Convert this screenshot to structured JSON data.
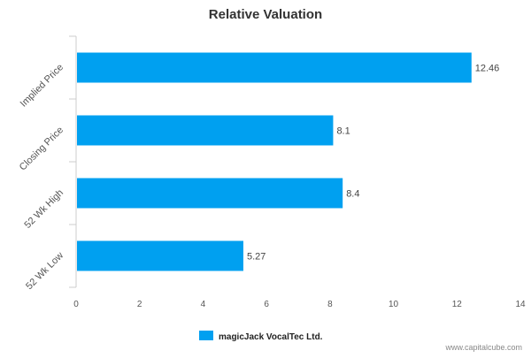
{
  "chart_data": {
    "type": "bar",
    "orientation": "horizontal",
    "title": "Relative Valuation",
    "categories": [
      "Implied Price",
      "Closing Price",
      "52 Wk High",
      "52 Wk Low"
    ],
    "series": [
      {
        "name": "magicJack VocalTec Ltd.",
        "values": [
          12.46,
          8.1,
          8.4,
          5.27
        ],
        "color": "#00a0f0"
      }
    ],
    "data_labels": [
      "12.46",
      "8.1",
      "8.4",
      "5.27"
    ],
    "xlim": [
      0,
      14
    ],
    "x_ticks": [
      0,
      2,
      4,
      6,
      8,
      10,
      12,
      14
    ],
    "x_tick_labels": [
      "0",
      "2",
      "4",
      "6",
      "8",
      "10",
      "12",
      "14"
    ],
    "xlabel": "",
    "ylabel": "",
    "grid": false,
    "legend_position": "bottom-center"
  },
  "credit": "www.capitalcube.com",
  "colors": {
    "axis": "#cccccc",
    "text": "#555555"
  }
}
